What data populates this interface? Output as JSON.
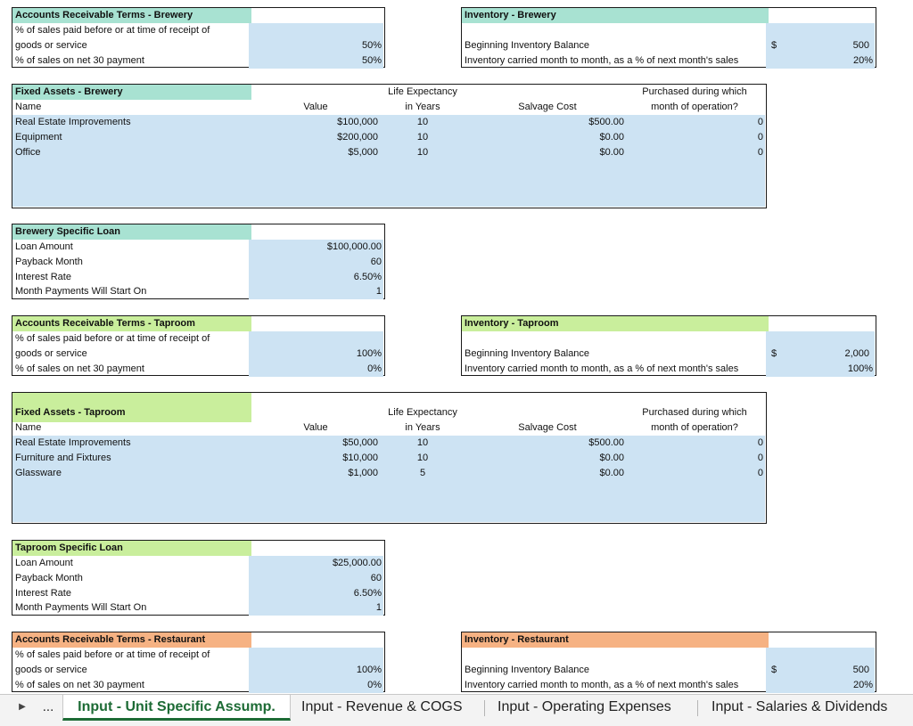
{
  "ar_brewery": {
    "title": "Accounts Receivable Terms - Brewery",
    "row1": "% of sales paid before or at time of receipt of",
    "row2": "goods or service",
    "row2_value": "50%",
    "row3": "% of sales on net 30 payment",
    "row3_value": "50%",
    "header_color": "#a8e2d2"
  },
  "inv_brewery": {
    "title": "Inventory - Brewery",
    "row1": "Beginning Inventory Balance",
    "row1_currency": "$",
    "row1_value": "500",
    "row2": "Inventory carried month to month, as a % of next month's sales",
    "row2_value": "20%"
  },
  "fa_brewery": {
    "title": "Fixed Assets - Brewery",
    "col_name": "Name",
    "col_value": "Value",
    "col_life_1": "Life Expectancy",
    "col_life_2": "in Years",
    "col_salvage": "Salvage Cost",
    "col_month_1": "Purchased during which",
    "col_month_2": "month of operation?",
    "rows": [
      {
        "name": "Real Estate Improvements",
        "value": "$100,000",
        "life": "10",
        "salvage": "$500.00",
        "month": "0"
      },
      {
        "name": "Equipment",
        "value": "$200,000",
        "life": "10",
        "salvage": "$0.00",
        "month": "0"
      },
      {
        "name": "Office",
        "value": "$5,000",
        "life": "10",
        "salvage": "$0.00",
        "month": "0"
      }
    ]
  },
  "loan_brewery": {
    "title": "Brewery Specific Loan",
    "rows": [
      {
        "label": "Loan Amount",
        "value": "$100,000.00"
      },
      {
        "label": "Payback Month",
        "value": "60"
      },
      {
        "label": "Interest Rate",
        "value": "6.50%"
      },
      {
        "label": "Month Payments Will Start On",
        "value": "1"
      }
    ]
  },
  "ar_taproom": {
    "title": "Accounts Receivable Terms - Taproom",
    "row1": "% of sales paid before or at time of receipt of",
    "row2": "goods or service",
    "row2_value": "100%",
    "row3": "% of sales on net 30 payment",
    "row3_value": "0%",
    "header_color": "#c9ee9c"
  },
  "inv_taproom": {
    "title": "Inventory - Taproom",
    "row1": "Beginning Inventory Balance",
    "row1_currency": "$",
    "row1_value": "2,000",
    "row2": "Inventory carried month to month, as a % of next month's sales",
    "row2_value": "100%"
  },
  "fa_taproom": {
    "title": "Fixed Assets - Taproom",
    "col_name": "Name",
    "col_value": "Value",
    "col_life_1": "Life Expectancy",
    "col_life_2": "in Years",
    "col_salvage": "Salvage Cost",
    "col_month_1": "Purchased during which",
    "col_month_2": "month of operation?",
    "rows": [
      {
        "name": "Real Estate Improvements",
        "value": "$50,000",
        "life": "10",
        "salvage": "$500.00",
        "month": "0"
      },
      {
        "name": "Furniture and Fixtures",
        "value": "$10,000",
        "life": "10",
        "salvage": "$0.00",
        "month": "0"
      },
      {
        "name": "Glassware",
        "value": "$1,000",
        "life": "5",
        "salvage": "$0.00",
        "month": "0"
      }
    ]
  },
  "loan_taproom": {
    "title": "Taproom Specific Loan",
    "rows": [
      {
        "label": "Loan Amount",
        "value": "$25,000.00"
      },
      {
        "label": "Payback Month",
        "value": "60"
      },
      {
        "label": "Interest Rate",
        "value": "6.50%"
      },
      {
        "label": "Month Payments Will Start On",
        "value": "1"
      }
    ]
  },
  "ar_restaurant": {
    "title": "Accounts Receivable Terms - Restaurant",
    "row1": "% of sales paid before or at time of receipt of",
    "row2": "goods or service",
    "row2_value": "100%",
    "row3": "% of sales on net 30 payment",
    "row3_value": "0%",
    "header_color": "#f6b283"
  },
  "inv_restaurant": {
    "title": "Inventory - Restaurant",
    "row1": "Beginning Inventory Balance",
    "row1_currency": "$",
    "row1_value": "500",
    "row2": "Inventory carried month to month, as a % of next month's sales",
    "row2_value": "20%"
  },
  "tabs": {
    "nav_next_icon": "triangle-right-icon",
    "ellipsis": "...",
    "items": [
      {
        "label": "Input - Unit Specific Assump.",
        "active": true
      },
      {
        "label": "Input - Revenue & COGS",
        "active": false
      },
      {
        "label": "Input - Operating Expenses",
        "active": false
      },
      {
        "label": "Input - Salaries & Dividends",
        "active": false
      }
    ],
    "active_color": "#1d6b35"
  }
}
